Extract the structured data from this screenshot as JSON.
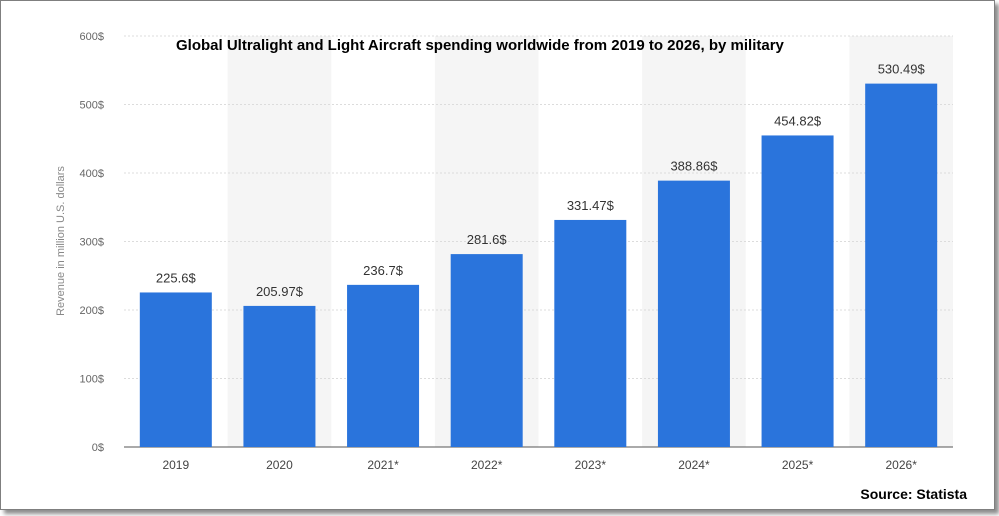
{
  "chart_data": {
    "type": "bar",
    "title": "Global Ultralight and Light Aircraft spending worldwide from 2019 to 2026, by military",
    "ylabel": "Revenue in million U.S. dollars",
    "xlabel": "",
    "source": "Source: Statista",
    "categories": [
      "2019",
      "2020",
      "2021*",
      "2022*",
      "2023*",
      "2024*",
      "2025*",
      "2026*"
    ],
    "values": [
      225.6,
      205.97,
      236.7,
      281.6,
      331.47,
      388.86,
      454.82,
      530.49
    ],
    "value_labels": [
      "225.6$",
      "205.97$",
      "236.7$",
      "281.6$",
      "331.47$",
      "388.86$",
      "454.82$",
      "530.49$"
    ],
    "yticks": [
      0,
      100,
      200,
      300,
      400,
      500,
      600
    ],
    "ytick_labels": [
      "0$",
      "100$",
      "200$",
      "300$",
      "400$",
      "500$",
      "600$"
    ],
    "ylim": [
      0,
      600
    ],
    "grid": true,
    "bar_color": "#2a74dc"
  }
}
